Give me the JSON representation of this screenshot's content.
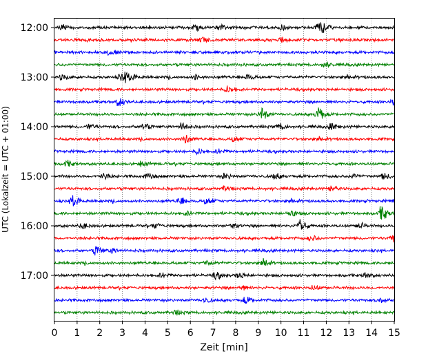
{
  "chart_data": {
    "type": "line",
    "title": "",
    "xlabel": "Zeit  [min]",
    "ylabel": "UTC (Lokalzeit = UTC + 01:00)",
    "xlim": [
      0,
      15
    ],
    "x_ticks": [
      0,
      1,
      2,
      3,
      4,
      5,
      6,
      7,
      8,
      9,
      10,
      11,
      12,
      13,
      14,
      15
    ],
    "x_tick_labels": [
      "0",
      "1",
      "2",
      "3",
      "4",
      "5",
      "6",
      "7",
      "8",
      "9",
      "10",
      "11",
      "12",
      "13",
      "14",
      "15"
    ],
    "y_tick_labels": [
      "12:00",
      "13:00",
      "14:00",
      "15:00",
      "16:00",
      "17:00"
    ],
    "trace_interval_min": 15,
    "start_time": "12:00",
    "trace_colors": [
      "#000000",
      "#ff0000",
      "#0000ff",
      "#008000"
    ],
    "vertical_grid": "dotted",
    "legend": "none",
    "traces": [
      {
        "start": "12:00",
        "color": "#000000",
        "events": [
          [
            0.3,
            0.35
          ],
          [
            6.2,
            0.4
          ],
          [
            7.2,
            0.4
          ],
          [
            10.0,
            0.35
          ],
          [
            11.6,
            0.55
          ],
          [
            11.8,
            0.45
          ]
        ]
      },
      {
        "start": "12:15",
        "color": "#ff0000",
        "events": [
          [
            6.5,
            0.3
          ],
          [
            10.0,
            0.3
          ]
        ]
      },
      {
        "start": "12:30",
        "color": "#0000ff",
        "events": [
          [
            2.4,
            0.35
          ]
        ]
      },
      {
        "start": "12:45",
        "color": "#008000",
        "events": [
          [
            11.9,
            0.35
          ]
        ]
      },
      {
        "start": "13:00",
        "color": "#000000",
        "events": [
          [
            0.3,
            0.35
          ],
          [
            2.9,
            0.45
          ],
          [
            3.1,
            0.4
          ],
          [
            3.4,
            0.35
          ],
          [
            6.2,
            0.3
          ],
          [
            8.5,
            0.3
          ]
        ]
      },
      {
        "start": "13:15",
        "color": "#ff0000",
        "events": [
          [
            7.6,
            0.45
          ]
        ]
      },
      {
        "start": "13:30",
        "color": "#0000ff",
        "events": [
          [
            2.8,
            0.55
          ],
          [
            14.9,
            0.4
          ]
        ]
      },
      {
        "start": "13:45",
        "color": "#008000",
        "events": [
          [
            9.1,
            0.95
          ],
          [
            11.6,
            1.0
          ]
        ]
      },
      {
        "start": "14:00",
        "color": "#000000",
        "events": [
          [
            1.5,
            0.3
          ],
          [
            3.9,
            0.45
          ],
          [
            5.6,
            0.5
          ],
          [
            9.9,
            0.4
          ],
          [
            12.2,
            0.4
          ]
        ]
      },
      {
        "start": "14:15",
        "color": "#ff0000",
        "events": [
          [
            5.7,
            0.65
          ],
          [
            7.9,
            0.35
          ]
        ]
      },
      {
        "start": "14:30",
        "color": "#0000ff",
        "events": [
          [
            6.3,
            0.35
          ],
          [
            7.2,
            0.3
          ]
        ]
      },
      {
        "start": "14:45",
        "color": "#008000",
        "events": [
          [
            0.5,
            0.4
          ],
          [
            3.8,
            0.3
          ]
        ]
      },
      {
        "start": "15:00",
        "color": "#000000",
        "events": [
          [
            2.1,
            0.4
          ],
          [
            4.1,
            0.45
          ],
          [
            7.5,
            0.4
          ],
          [
            9.7,
            0.35
          ],
          [
            13.1,
            0.3
          ],
          [
            14.5,
            0.4
          ]
        ]
      },
      {
        "start": "15:15",
        "color": "#ff0000",
        "events": [
          [
            7.5,
            0.3
          ],
          [
            12.2,
            0.3
          ]
        ]
      },
      {
        "start": "15:30",
        "color": "#0000ff",
        "events": [
          [
            0.8,
            0.85
          ],
          [
            5.5,
            0.55
          ],
          [
            6.7,
            0.45
          ],
          [
            15.0,
            0.4
          ]
        ]
      },
      {
        "start": "15:45",
        "color": "#008000",
        "events": [
          [
            5.8,
            0.3
          ],
          [
            10.4,
            0.4
          ],
          [
            14.4,
            1.0
          ]
        ]
      },
      {
        "start": "16:00",
        "color": "#000000",
        "events": [
          [
            1.2,
            0.35
          ],
          [
            4.4,
            0.3
          ],
          [
            7.8,
            0.3
          ],
          [
            10.8,
            1.0
          ],
          [
            13.4,
            0.4
          ]
        ]
      },
      {
        "start": "16:15",
        "color": "#ff0000",
        "events": [
          [
            11.3,
            0.35
          ],
          [
            14.9,
            0.65
          ]
        ]
      },
      {
        "start": "16:30",
        "color": "#0000ff",
        "events": [
          [
            1.8,
            0.65
          ],
          [
            2.5,
            0.3
          ]
        ]
      },
      {
        "start": "16:45",
        "color": "#008000",
        "events": [
          [
            6.7,
            0.35
          ],
          [
            9.2,
            0.3
          ]
        ]
      },
      {
        "start": "17:00",
        "color": "#000000",
        "events": [
          [
            4.7,
            0.3
          ],
          [
            7.1,
            0.45
          ],
          [
            8.1,
            0.35
          ],
          [
            13.7,
            0.3
          ]
        ]
      },
      {
        "start": "17:15",
        "color": "#ff0000",
        "events": [
          [
            8.2,
            0.3
          ],
          [
            11.4,
            0.3
          ]
        ]
      },
      {
        "start": "17:30",
        "color": "#0000ff",
        "events": [
          [
            6.6,
            0.35
          ],
          [
            8.4,
            0.45
          ],
          [
            14.3,
            0.35
          ]
        ]
      },
      {
        "start": "17:45",
        "color": "#008000",
        "events": [
          [
            5.3,
            0.3
          ]
        ]
      }
    ]
  }
}
